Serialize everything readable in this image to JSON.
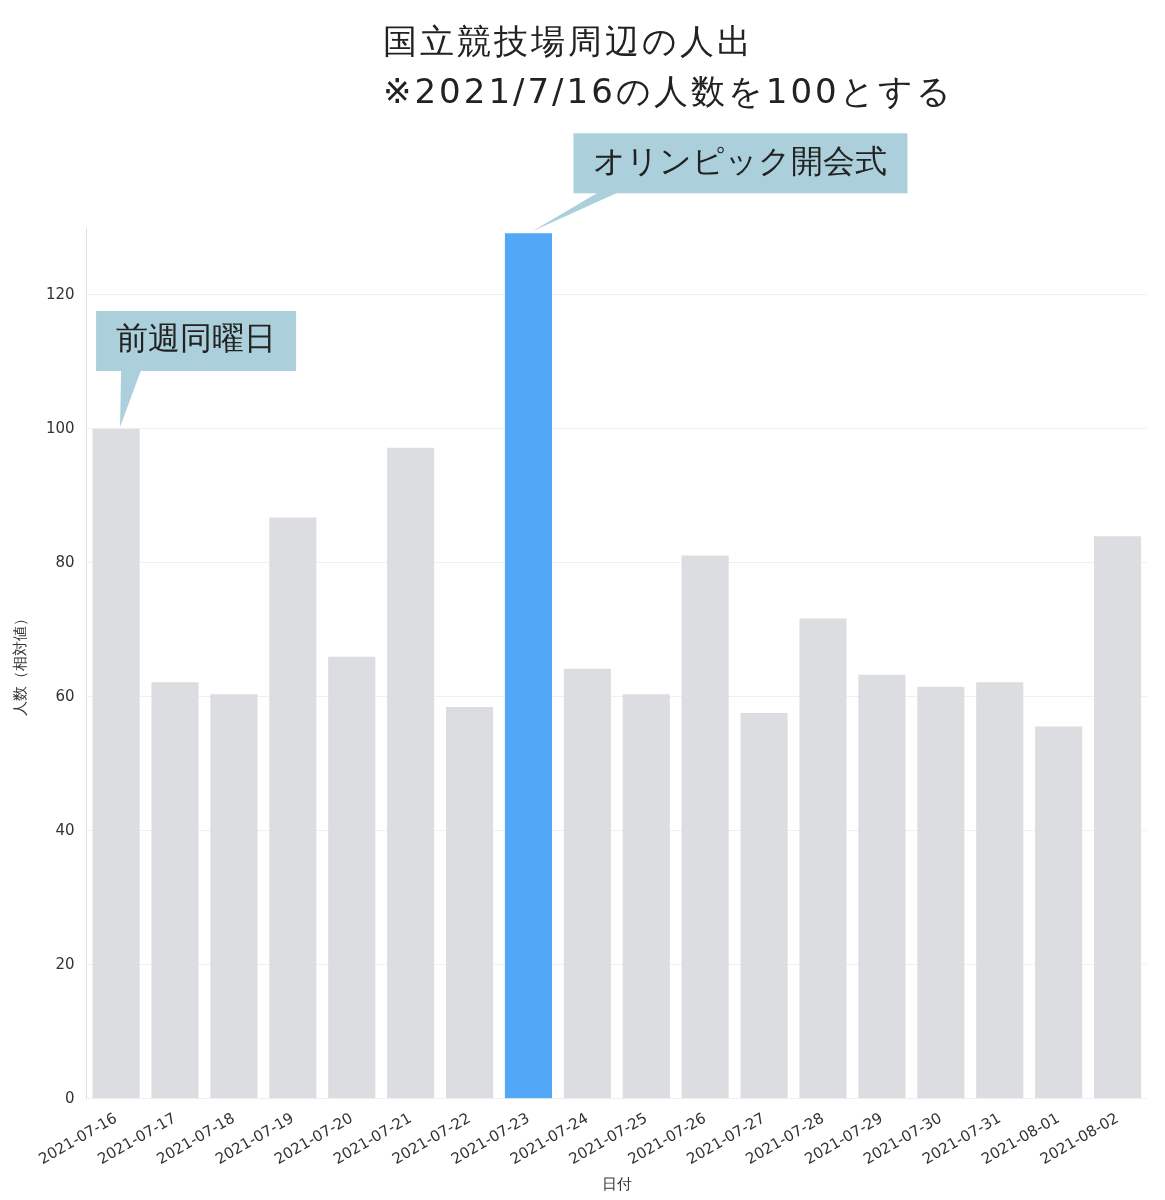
{
  "chart_data": {
    "type": "bar",
    "title": "国立競技場周辺の人出",
    "subtitle": "※2021/7/16の人数を100とする",
    "xlabel": "日付",
    "ylabel": "人数（相対値）",
    "categories": [
      "2021-07-16",
      "2021-07-17",
      "2021-07-18",
      "2021-07-19",
      "2021-07-20",
      "2021-07-21",
      "2021-07-22",
      "2021-07-23",
      "2021-07-24",
      "2021-07-25",
      "2021-07-26",
      "2021-07-27",
      "2021-07-28",
      "2021-07-29",
      "2021-07-30",
      "2021-07-31",
      "2021-08-01",
      "2021-08-02"
    ],
    "values": [
      100,
      62.2,
      60.4,
      86.8,
      66.0,
      97.2,
      58.5,
      129.2,
      64.2,
      60.4,
      81.1,
      57.6,
      71.7,
      63.3,
      61.5,
      62.2,
      55.6,
      84.0
    ],
    "colors": [
      "#dcdde0",
      "#dcdde0",
      "#dcdde0",
      "#dcdde0",
      "#dcdde0",
      "#dcdde0",
      "#dcdde0",
      "#52a8f7",
      "#dcdde0",
      "#dcdde0",
      "#dcdde0",
      "#dcdde0",
      "#dcdde0",
      "#dcdde0",
      "#dcdde0",
      "#dcdde0",
      "#dcdde0",
      "#dcdde0"
    ],
    "ylim": [
      0,
      130
    ],
    "yticks": [
      0,
      20,
      40,
      60,
      80,
      100,
      120
    ],
    "grid": "y",
    "legend": false,
    "annotations": [
      {
        "text": "前週同曜日",
        "x": "2021-07-16",
        "y": 100
      },
      {
        "text": "オリンピック開会式",
        "x": "2021-07-23",
        "y": 129.2
      }
    ]
  }
}
